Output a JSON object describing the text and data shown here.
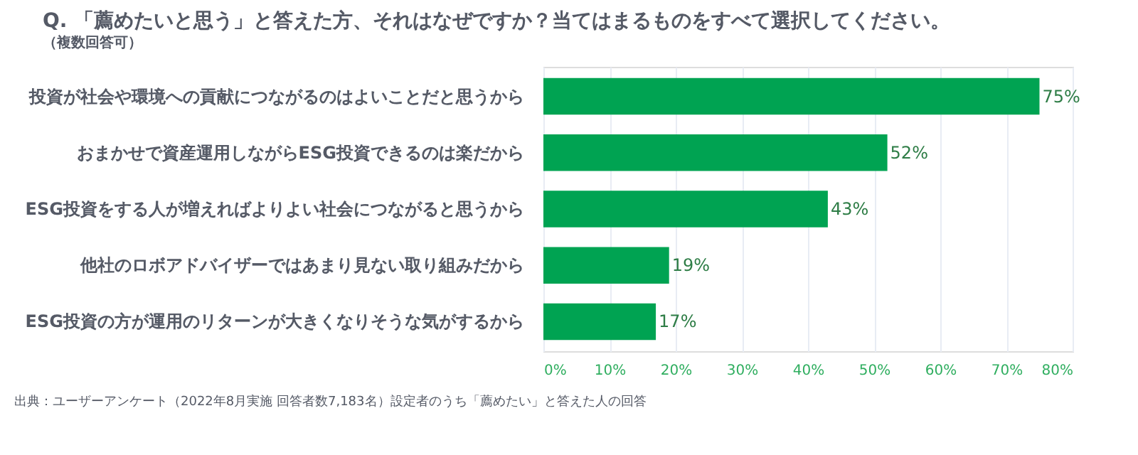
{
  "chart_data": {
    "type": "bar",
    "orientation": "horizontal",
    "title": "Q. 「薦めたいと思う」と答えた方、それはなぜですか？当てはまるものをすべて選択してください。",
    "subtitle": "（複数回答可）",
    "categories": [
      "投資が社会や環境への貢献につながるのはよいことだと思うから",
      "おまかせで資産運用しながらESG投資できるのは楽だから",
      "ESG投資をする人が増えればよりよい社会につながると思うから",
      "他社のロボアドバイザーではあまり見ない取り組みだから",
      "ESG投資の方が運用のリターンが大きくなりそうな気がするから"
    ],
    "values": [
      75,
      52,
      43,
      19,
      17
    ],
    "value_labels": [
      "75%",
      "52%",
      "43%",
      "19%",
      "17%"
    ],
    "color": "#00a352",
    "xlim": [
      0,
      80
    ],
    "xticks": [
      {
        "value": 0,
        "label": "0%"
      },
      {
        "value": 10,
        "label": "10%"
      },
      {
        "value": 20,
        "label": "20%"
      },
      {
        "value": 30,
        "label": "30%"
      },
      {
        "value": 40,
        "label": "40%"
      },
      {
        "value": 50,
        "label": "50%"
      },
      {
        "value": 60,
        "label": "60%"
      },
      {
        "value": 70,
        "label": "70%"
      },
      {
        "value": 80,
        "label": "80%"
      }
    ],
    "grid": "x",
    "annotations": [
      "出典：ユーザーアンケート（2022年8月実施 回答者数7,183名）設定者のうち「薦めたい」と答えた人の回答"
    ]
  }
}
